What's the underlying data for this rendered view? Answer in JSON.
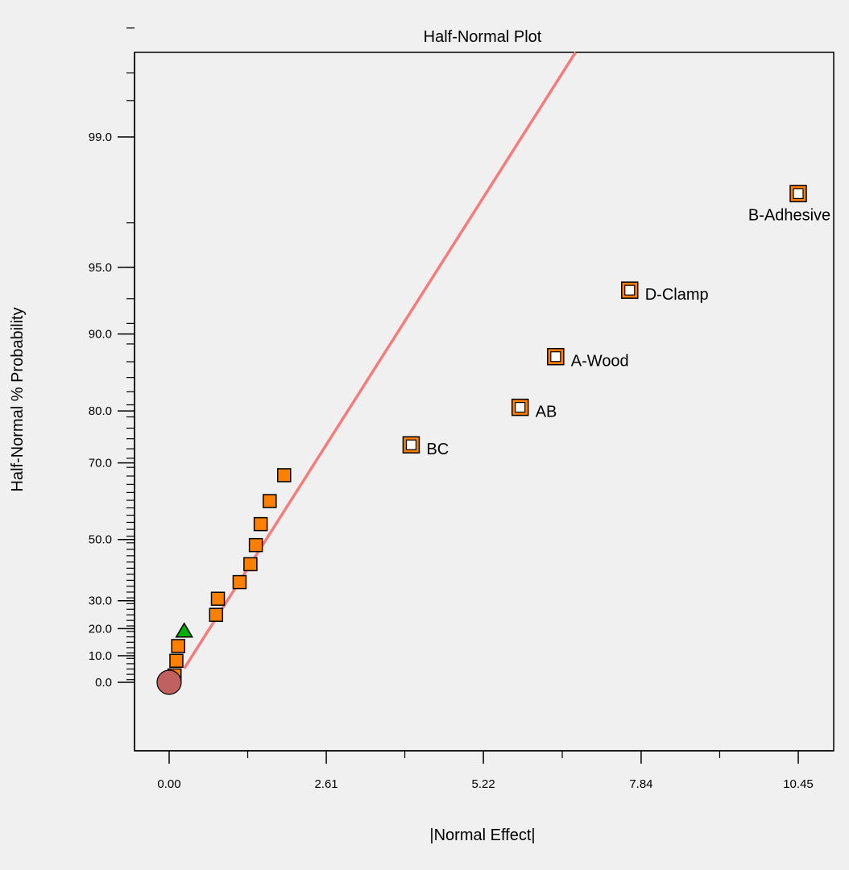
{
  "chart_data": {
    "type": "scatter",
    "title": "Half-Normal Plot",
    "xlabel": "|Normal Effect|",
    "ylabel": "Half-Normal % Probability",
    "xlim": [
      -0.57,
      11.05
    ],
    "x_ticks": [
      "0.00",
      "2.61",
      "5.22",
      "7.84",
      "10.45"
    ],
    "y_ticks": [
      "0.0",
      "10.0",
      "20.0",
      "30.0",
      "50.0",
      "70.0",
      "80.0",
      "90.0",
      "95.0",
      "99.0"
    ],
    "y_scale": "half-normal probability",
    "grid": false,
    "reference_line": {
      "color": "#f47c7c",
      "x": [
        0.25,
        6.75
      ],
      "y": [
        5.2,
        99.95
      ]
    },
    "series": [
      {
        "marker": "square",
        "color": "#ff8000",
        "points": [
          {
            "x": 0.09,
            "y": 2.6,
            "label": ""
          },
          {
            "x": 0.12,
            "y": 8.1,
            "label": ""
          },
          {
            "x": 0.15,
            "y": 13.6,
            "label": ""
          },
          {
            "x": 0.78,
            "y": 25.0,
            "label": ""
          },
          {
            "x": 0.81,
            "y": 30.7,
            "label": ""
          },
          {
            "x": 1.17,
            "y": 36.4,
            "label": ""
          },
          {
            "x": 1.35,
            "y": 42.3,
            "label": ""
          },
          {
            "x": 1.44,
            "y": 48.3,
            "label": ""
          },
          {
            "x": 1.52,
            "y": 54.5,
            "label": ""
          },
          {
            "x": 1.67,
            "y": 60.8,
            "label": ""
          },
          {
            "x": 1.91,
            "y": 67.2,
            "label": ""
          }
        ]
      },
      {
        "marker": "square-highlight",
        "color": "#ff8000",
        "points": [
          {
            "x": 4.02,
            "y": 73.8,
            "label": "BC"
          },
          {
            "x": 5.83,
            "y": 80.6,
            "label": "AB"
          },
          {
            "x": 6.42,
            "y": 87.6,
            "label": "A-Wood"
          },
          {
            "x": 7.65,
            "y": 93.6,
            "label": "D-Clamp"
          },
          {
            "x": 10.45,
            "y": 97.9,
            "label": "B-Adhesive"
          }
        ]
      },
      {
        "marker": "triangle",
        "color": "#00b000",
        "points": [
          {
            "x": 0.25,
            "y": 19.0,
            "label": ""
          }
        ]
      },
      {
        "marker": "circle",
        "color": "#c0605f",
        "points": [
          {
            "x": 0.0,
            "y": 0.0,
            "label": ""
          }
        ]
      }
    ]
  }
}
